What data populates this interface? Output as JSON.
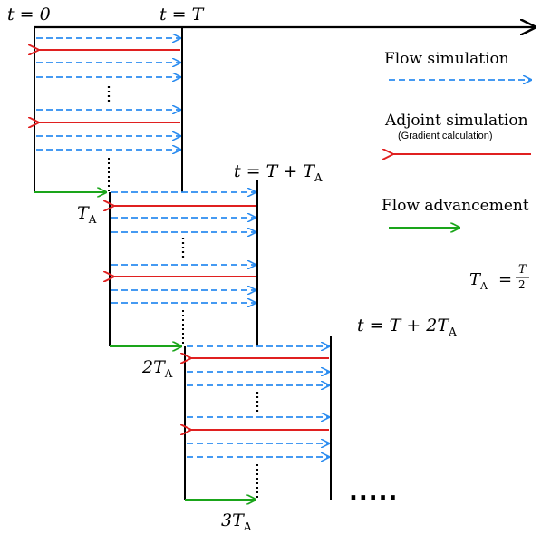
{
  "diagram": {
    "colors": {
      "flow": "#2b8cf0",
      "adjoint": "#e02020",
      "advance": "#1aa51a",
      "axis": "#000000"
    },
    "labels": {
      "t0": "t = 0",
      "tT": "t = T",
      "tT_TA": "t = T + T",
      "tT_TA_sub": "A",
      "tT_2TA": "t = T + 2T",
      "tT_2TA_sub": "A",
      "TA": "T",
      "TA_sub": "A",
      "twoTA": "2T",
      "twoTA_sub": "A",
      "threeTA": "3T",
      "threeTA_sub": "A",
      "continuation": "....."
    },
    "legend": {
      "flow": "Flow simulation",
      "adjoint": "Adjoint simulation",
      "adjoint_sub": "(Gradient calculation)",
      "advance": "Flow advancement",
      "formula_lhs": "T",
      "formula_lhs_sub": "A",
      "formula_eq": "=",
      "formula_num": "T",
      "formula_den": "2"
    }
  }
}
